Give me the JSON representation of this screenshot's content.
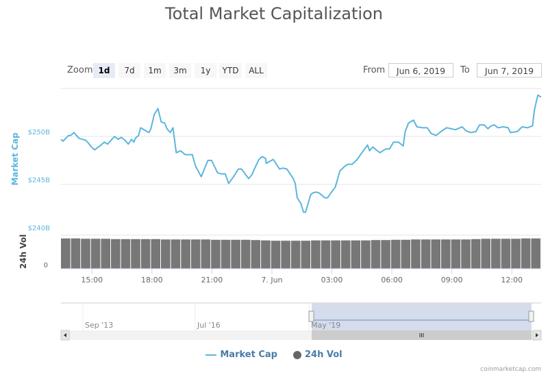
{
  "title": "Total Market Capitalization",
  "zoom": {
    "label": "Zoom",
    "buttons": [
      "1d",
      "7d",
      "1m",
      "3m",
      "1y",
      "YTD",
      "ALL"
    ],
    "active": "1d"
  },
  "range": {
    "from_label": "From",
    "from_value": "Jun 6, 2019",
    "to_label": "To",
    "to_value": "Jun 7, 2019"
  },
  "colors": {
    "market_cap": "#5bb5dc",
    "volume": "#777777",
    "navigator_mask": "#d0d8ea"
  },
  "navigator": {
    "labels": [
      "Sep '13",
      "Jul '16",
      "May '19"
    ],
    "selection_fraction": [
      0.52,
      1.0
    ]
  },
  "legend": {
    "items": [
      {
        "label": "Market Cap",
        "symbol": "line"
      },
      {
        "label": "24h Vol",
        "symbol": "circle"
      }
    ]
  },
  "credit": "coinmarketcap.com",
  "chart_data": {
    "type": "line",
    "title": "Total Market Capitalization",
    "x_range": [
      "Jun 6 13:27",
      "Jun 7 13:28"
    ],
    "x_ticks": [
      {
        "label": "15:00",
        "time": "Jun 6 15:00"
      },
      {
        "label": "18:00",
        "time": "Jun 6 18:00"
      },
      {
        "label": "21:00",
        "time": "Jun 6 21:00"
      },
      {
        "label": "7. Jun",
        "time": "Jun 7 00:00"
      },
      {
        "label": "03:00",
        "time": "Jun 7 03:00"
      },
      {
        "label": "06:00",
        "time": "Jun 7 06:00"
      },
      {
        "label": "09:00",
        "time": "Jun 7 09:00"
      },
      {
        "label": "12:00",
        "time": "Jun 7 12:00"
      }
    ],
    "y_axis": {
      "label": "Market Cap",
      "unit": "B USD",
      "range": [
        240,
        255
      ],
      "ticks": [
        {
          "value": 250,
          "label": "$250B"
        },
        {
          "value": 245,
          "label": "$245B"
        },
        {
          "value": 240,
          "label": "$240B"
        }
      ],
      "grid": true
    },
    "volume_axis": {
      "label": "24h Vol",
      "ticks": [
        {
          "value": 0,
          "label": "0"
        }
      ]
    },
    "legend_placement": "bottom",
    "series": [
      {
        "name": "Market Cap",
        "type": "line",
        "points": [
          [
            "Jun 6 13:27",
            249.7
          ],
          [
            "Jun 6 13:33",
            249.5
          ],
          [
            "Jun 6 13:50",
            250.1
          ],
          [
            "Jun 6 13:56",
            250.1
          ],
          [
            "Jun 6 14:06",
            250.4
          ],
          [
            "Jun 6 14:21",
            249.8
          ],
          [
            "Jun 6 14:41",
            249.6
          ],
          [
            "Jun 6 14:47",
            249.4
          ],
          [
            "Jun 6 14:58",
            248.9
          ],
          [
            "Jun 6 15:08",
            248.6
          ],
          [
            "Jun 6 15:27",
            249.1
          ],
          [
            "Jun 6 15:37",
            249.4
          ],
          [
            "Jun 6 15:47",
            249.2
          ],
          [
            "Jun 6 16:00",
            249.7
          ],
          [
            "Jun 6 16:08",
            250.0
          ],
          [
            "Jun 6 16:18",
            249.7
          ],
          [
            "Jun 6 16:28",
            249.9
          ],
          [
            "Jun 6 16:39",
            249.6
          ],
          [
            "Jun 6 16:49",
            249.2
          ],
          [
            "Jun 6 16:59",
            249.7
          ],
          [
            "Jun 6 17:06",
            249.4
          ],
          [
            "Jun 6 17:10",
            249.8
          ],
          [
            "Jun 6 17:20",
            250.1
          ],
          [
            "Jun 6 17:26",
            250.9
          ],
          [
            "Jun 6 17:41",
            250.6
          ],
          [
            "Jun 6 17:51",
            250.4
          ],
          [
            "Jun 6 17:57",
            250.8
          ],
          [
            "Jun 6 18:07",
            252.3
          ],
          [
            "Jun 6 18:18",
            252.9
          ],
          [
            "Jun 6 18:28",
            251.5
          ],
          [
            "Jun 6 18:38",
            251.4
          ],
          [
            "Jun 6 18:45",
            250.8
          ],
          [
            "Jun 6 18:55",
            250.4
          ],
          [
            "Jun 6 19:03",
            250.9
          ],
          [
            "Jun 6 19:13",
            248.3
          ],
          [
            "Jun 6 19:26",
            248.5
          ],
          [
            "Jun 6 19:40",
            248.1
          ],
          [
            "Jun 6 20:01",
            248.1
          ],
          [
            "Jun 6 20:11",
            246.9
          ],
          [
            "Jun 6 20:28",
            245.8
          ],
          [
            "Jun 6 20:48",
            247.5
          ],
          [
            "Jun 6 20:59",
            247.5
          ],
          [
            "Jun 6 21:17",
            246.2
          ],
          [
            "Jun 6 21:27",
            246.1
          ],
          [
            "Jun 6 21:40",
            246.1
          ],
          [
            "Jun 6 21:50",
            245.1
          ],
          [
            "Jun 6 22:05",
            245.8
          ],
          [
            "Jun 6 22:19",
            246.6
          ],
          [
            "Jun 6 22:29",
            246.6
          ],
          [
            "Jun 6 22:50",
            245.6
          ],
          [
            "Jun 6 23:00",
            246.0
          ],
          [
            "Jun 6 23:06",
            246.5
          ],
          [
            "Jun 6 23:21",
            247.6
          ],
          [
            "Jun 6 23:31",
            247.9
          ],
          [
            "Jun 6 23:41",
            247.7
          ],
          [
            "Jun 6 23:43",
            247.2
          ],
          [
            "Jun 7 00:04",
            247.6
          ],
          [
            "Jun 7 00:08",
            247.4
          ],
          [
            "Jun 7 00:23",
            246.6
          ],
          [
            "Jun 7 00:33",
            246.7
          ],
          [
            "Jun 7 00:45",
            246.6
          ],
          [
            "Jun 7 01:04",
            245.6
          ],
          [
            "Jun 7 01:10",
            245.1
          ],
          [
            "Jun 7 01:16",
            243.6
          ],
          [
            "Jun 7 01:27",
            243.0
          ],
          [
            "Jun 7 01:35",
            242.1
          ],
          [
            "Jun 7 01:41",
            242.1
          ],
          [
            "Jun 7 01:56",
            243.9
          ],
          [
            "Jun 7 02:02",
            244.1
          ],
          [
            "Jun 7 02:12",
            244.2
          ],
          [
            "Jun 7 02:22",
            244.1
          ],
          [
            "Jun 7 02:39",
            243.6
          ],
          [
            "Jun 7 02:47",
            243.6
          ],
          [
            "Jun 7 02:59",
            244.2
          ],
          [
            "Jun 7 03:10",
            244.7
          ],
          [
            "Jun 7 03:24",
            246.4
          ],
          [
            "Jun 7 03:39",
            246.9
          ],
          [
            "Jun 7 03:49",
            247.1
          ],
          [
            "Jun 7 04:01",
            247.1
          ],
          [
            "Jun 7 04:16",
            247.6
          ],
          [
            "Jun 7 04:30",
            248.3
          ],
          [
            "Jun 7 04:47",
            249.1
          ],
          [
            "Jun 7 04:53",
            248.5
          ],
          [
            "Jun 7 05:03",
            248.9
          ],
          [
            "Jun 7 05:13",
            248.6
          ],
          [
            "Jun 7 05:24",
            248.3
          ],
          [
            "Jun 7 05:42",
            248.7
          ],
          [
            "Jun 7 05:53",
            248.7
          ],
          [
            "Jun 7 06:05",
            249.4
          ],
          [
            "Jun 7 06:20",
            249.4
          ],
          [
            "Jun 7 06:34",
            249.0
          ],
          [
            "Jun 7 06:40",
            250.5
          ],
          [
            "Jun 7 06:50",
            251.4
          ],
          [
            "Jun 7 07:05",
            251.7
          ],
          [
            "Jun 7 07:15",
            251.0
          ],
          [
            "Jun 7 07:32",
            250.9
          ],
          [
            "Jun 7 07:46",
            250.9
          ],
          [
            "Jun 7 07:58",
            250.3
          ],
          [
            "Jun 7 08:13",
            250.1
          ],
          [
            "Jun 7 08:27",
            250.5
          ],
          [
            "Jun 7 08:44",
            250.9
          ],
          [
            "Jun 7 09:11",
            250.7
          ],
          [
            "Jun 7 09:31",
            251.0
          ],
          [
            "Jun 7 09:42",
            250.6
          ],
          [
            "Jun 7 09:56",
            250.4
          ],
          [
            "Jun 7 10:12",
            250.5
          ],
          [
            "Jun 7 10:23",
            251.2
          ],
          [
            "Jun 7 10:37",
            251.2
          ],
          [
            "Jun 7 10:48",
            250.8
          ],
          [
            "Jun 7 10:58",
            251.1
          ],
          [
            "Jun 7 11:08",
            251.2
          ],
          [
            "Jun 7 11:18",
            250.9
          ],
          [
            "Jun 7 11:35",
            251.0
          ],
          [
            "Jun 7 11:49",
            250.9
          ],
          [
            "Jun 7 11:56",
            250.4
          ],
          [
            "Jun 7 12:16",
            250.5
          ],
          [
            "Jun 7 12:31",
            251.0
          ],
          [
            "Jun 7 12:47",
            250.9
          ],
          [
            "Jun 7 13:02",
            251.1
          ],
          [
            "Jun 7 13:08",
            252.8
          ],
          [
            "Jun 7 13:18",
            254.3
          ],
          [
            "Jun 7 13:28",
            254.1
          ]
        ]
      },
      {
        "name": "24h Vol",
        "type": "bar",
        "relative_to_axis_max": [
          0.92,
          0.92,
          0.91,
          0.91,
          0.91,
          0.9,
          0.9,
          0.9,
          0.9,
          0.9,
          0.89,
          0.89,
          0.89,
          0.89,
          0.89,
          0.88,
          0.88,
          0.88,
          0.88,
          0.87,
          0.86,
          0.85,
          0.85,
          0.85,
          0.85,
          0.86,
          0.86,
          0.86,
          0.86,
          0.86,
          0.86,
          0.87,
          0.87,
          0.88,
          0.88,
          0.89,
          0.89,
          0.89,
          0.89,
          0.89,
          0.89,
          0.9,
          0.91,
          0.91,
          0.91,
          0.91,
          0.92,
          0.92
        ]
      }
    ]
  }
}
